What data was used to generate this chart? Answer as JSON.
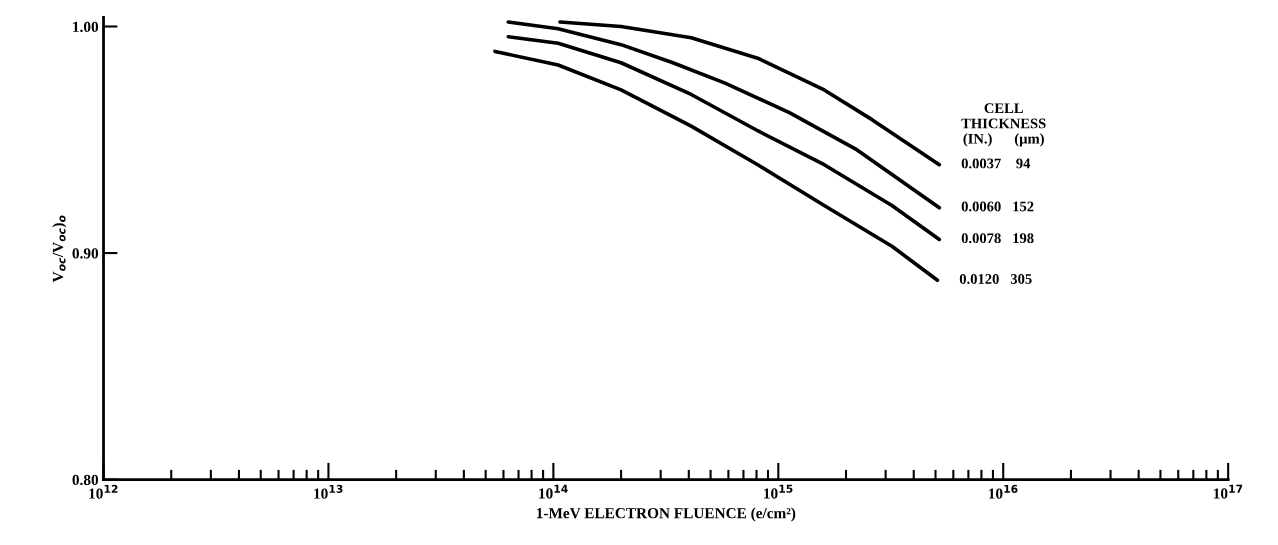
{
  "chart_data": {
    "type": "line",
    "xlabel": "1-MeV ELECTRON FLUENCE (e/cm²)",
    "ylabel": "V$_{oc}$/V$_{oc}$)$_{o}$",
    "legend_title": "CELL\nTHICKNESS\n(IN.)      (µm)",
    "log": "x",
    "xlim": [
      1000000000000.0,
      1e+17
    ],
    "xticks": [
      {
        "value": 1000000000000.0,
        "label": "10$^{12}$"
      },
      {
        "value": 10000000000000.0,
        "label": "10$^{13}$"
      },
      {
        "value": 100000000000000.0,
        "label": "10$^{14}$"
      },
      {
        "value": 1000000000000000.0,
        "label": "10$^{15}$"
      },
      {
        "value": 1e+16,
        "label": "10$^{16}$"
      },
      {
        "value": 1e+17,
        "label": "10$^{17}$"
      }
    ],
    "ylim": [
      0.8,
      1.004
    ],
    "yticks": [
      {
        "value": 0.8,
        "label": "0.80"
      },
      {
        "value": 0.9,
        "label": "0.90"
      },
      {
        "value": 1.0,
        "label": "1.00"
      }
    ],
    "grid": false,
    "legend": "right",
    "marker": "none",
    "line_style": "solid",
    "series": [
      {
        "name": "0.0037    94",
        "color": "#000000",
        "x": [
          107000000000000.0,
          200000000000000.0,
          410000000000000.0,
          810000000000000.0,
          1600000000000000.0,
          2600000000000000.0,
          5200000000000000.0
        ],
        "values": [
          1.002,
          1.0,
          0.995,
          0.986,
          0.972,
          0.959,
          0.939
        ]
      },
      {
        "name": "0.0060   152",
        "color": "#000000",
        "x": [
          63000000000000.0,
          105000000000000.0,
          200000000000000.0,
          340000000000000.0,
          580000000000000.0,
          1120000000000000.0,
          2200000000000000.0,
          5200000000000000.0
        ],
        "values": [
          1.002,
          0.999,
          0.992,
          0.984,
          0.975,
          0.962,
          0.946,
          0.92
        ]
      },
      {
        "name": "0.0078   198",
        "color": "#000000",
        "x": [
          63000000000000.0,
          105000000000000.0,
          200000000000000.0,
          410000000000000.0,
          810000000000000.0,
          1600000000000000.0,
          3200000000000000.0,
          5200000000000000.0
        ],
        "values": [
          0.9955,
          0.9926,
          0.984,
          0.97,
          0.954,
          0.939,
          0.921,
          0.906
        ]
      },
      {
        "name": "0.0120   305",
        "color": "#000000",
        "x": [
          55000000000000.0,
          105000000000000.0,
          200000000000000.0,
          410000000000000.0,
          810000000000000.0,
          1600000000000000.0,
          3200000000000000.0,
          5100000000000000.0
        ],
        "values": [
          0.989,
          0.983,
          0.972,
          0.956,
          0.939,
          0.921,
          0.903,
          0.888
        ]
      }
    ]
  }
}
